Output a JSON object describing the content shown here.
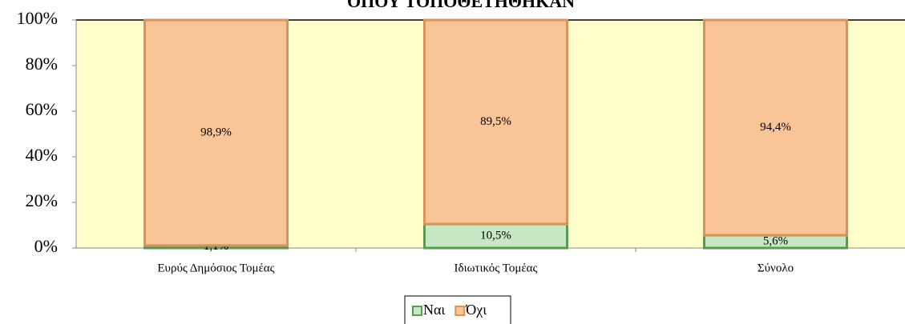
{
  "chart_data": {
    "type": "stacked-bar",
    "title": "ΟΠΟΥ ΤΟΠΟΘΕΤΗΘΗΚΑΝ",
    "categories": [
      "Ευρύς Δημόσιος Τομέας",
      "Ιδιωτικός Τομέας",
      "Σύνολο"
    ],
    "series": [
      {
        "name": "Ναι",
        "color": "#c6e8c2",
        "values": [
          1.1,
          10.5,
          5.6
        ],
        "value_labels": [
          "1,1%",
          "10,5%",
          "5,6%"
        ]
      },
      {
        "name": "Όχι",
        "color": "#fac596",
        "values": [
          98.9,
          89.5,
          94.4
        ],
        "value_labels": [
          "98,9%",
          "89,5%",
          "94,4%"
        ]
      }
    ],
    "ylim": [
      0,
      100
    ],
    "yticks": [
      {
        "value": 0,
        "label": "0%"
      },
      {
        "value": 20,
        "label": "20%"
      },
      {
        "value": 40,
        "label": "40%"
      },
      {
        "value": 60,
        "label": "60%"
      },
      {
        "value": 80,
        "label": "80%"
      },
      {
        "value": 100,
        "label": "100%"
      }
    ],
    "plot_background": "#ffffcc",
    "legend": "bottom"
  }
}
